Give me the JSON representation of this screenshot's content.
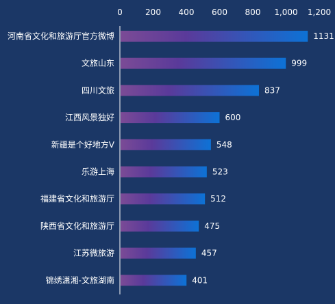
{
  "chart_data": {
    "type": "bar",
    "orientation": "horizontal",
    "axis_position": "top",
    "categories": [
      "河南省文化和旅游厅官方微博",
      "文旅山东",
      "四川文旅",
      "江西风景独好",
      "新疆是个好地方V",
      "乐游上海",
      "福建省文化和旅游厅",
      "陕西省文化和旅游厅",
      "江苏微旅游",
      "锦绣潇湘-文旅湖南"
    ],
    "values": [
      1131,
      999,
      837,
      600,
      548,
      523,
      512,
      475,
      457,
      401
    ],
    "xlim": [
      0,
      1200
    ],
    "xticks": [
      "0",
      "200",
      "400",
      "600",
      "800",
      "1,000",
      "1,200"
    ],
    "grid": false,
    "data_labels": true,
    "title": "",
    "xlabel": "",
    "ylabel": ""
  },
  "colors": {
    "background": "#1b3766",
    "bar_start": "#7b4b96",
    "bar_mid": "#5a3a9a",
    "bar_end": "#0d72d6",
    "axis": "#ffffff",
    "text": "#ffffff"
  }
}
